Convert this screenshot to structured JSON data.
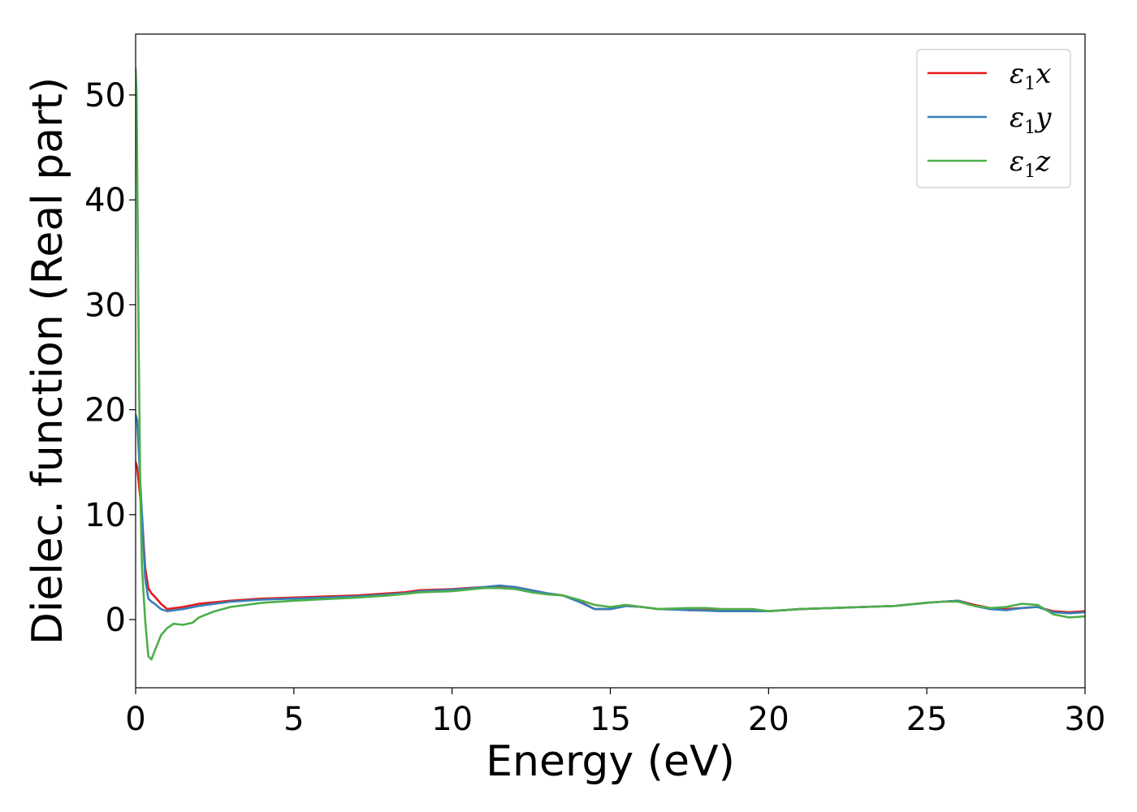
{
  "chart_data": {
    "type": "line",
    "title": "",
    "xlabel": "Energy (eV)",
    "ylabel": "Dielec. function (Real part)",
    "xlim": [
      0,
      30
    ],
    "ylim": [
      -6.5,
      55.8
    ],
    "xticks": [
      0,
      5,
      10,
      15,
      20,
      25,
      30
    ],
    "yticks": [
      0,
      10,
      20,
      30,
      40,
      50
    ],
    "grid": false,
    "legend_position": "top-right",
    "series": [
      {
        "name": "ε1x",
        "legend_symbol": "ε",
        "legend_subscript": "1",
        "legend_suffix": "x",
        "color": "#e41a1c",
        "x": [
          0,
          0.05,
          0.1,
          0.2,
          0.3,
          0.4,
          0.5,
          0.6,
          0.8,
          1.0,
          1.5,
          2,
          3,
          4,
          5,
          6,
          7,
          8,
          8.5,
          9,
          10,
          10.5,
          11,
          11.5,
          12,
          12.5,
          13,
          13.5,
          14,
          14.5,
          15,
          15.5,
          16,
          16.5,
          17,
          17.5,
          18,
          18.5,
          19,
          19.5,
          20,
          20.5,
          21,
          22,
          23,
          24,
          25,
          25.5,
          26,
          26.5,
          27,
          27.5,
          28,
          28.5,
          29,
          29.5,
          30
        ],
        "y": [
          15,
          14.5,
          13,
          10,
          5,
          3,
          2.5,
          2.2,
          1.5,
          1.0,
          1.2,
          1.5,
          1.8,
          2.0,
          2.1,
          2.2,
          2.3,
          2.5,
          2.6,
          2.8,
          2.9,
          3.0,
          3.1,
          3.2,
          3.1,
          2.8,
          2.5,
          2.3,
          1.8,
          1.0,
          1.0,
          1.3,
          1.2,
          1.0,
          1.0,
          0.9,
          0.9,
          0.85,
          0.85,
          0.85,
          0.8,
          0.9,
          1.0,
          1.1,
          1.2,
          1.3,
          1.6,
          1.7,
          1.8,
          1.4,
          1.1,
          1.0,
          1.1,
          1.2,
          0.8,
          0.7,
          0.8
        ]
      },
      {
        "name": "ε1y",
        "legend_symbol": "ε",
        "legend_subscript": "1",
        "legend_suffix": "y",
        "color": "#377eb8",
        "x": [
          0,
          0.05,
          0.1,
          0.2,
          0.3,
          0.4,
          0.5,
          0.6,
          0.8,
          1.0,
          1.5,
          2,
          3,
          4,
          5,
          6,
          7,
          8,
          8.5,
          9,
          10,
          10.5,
          11,
          11.5,
          12,
          12.5,
          13,
          13.5,
          14,
          14.5,
          15,
          15.5,
          16,
          16.5,
          17,
          17.5,
          18,
          18.5,
          19,
          19.5,
          20,
          20.5,
          21,
          22,
          23,
          24,
          25,
          25.5,
          26,
          26.5,
          27,
          27.5,
          28,
          28.5,
          29,
          29.5,
          30
        ],
        "y": [
          19.5,
          19,
          16,
          10,
          4,
          2,
          1.7,
          1.5,
          1.0,
          0.8,
          1.0,
          1.3,
          1.7,
          1.9,
          2.0,
          2.1,
          2.2,
          2.4,
          2.5,
          2.7,
          2.85,
          2.95,
          3.1,
          3.25,
          3.1,
          2.8,
          2.5,
          2.3,
          1.7,
          1.0,
          1.0,
          1.3,
          1.2,
          1.0,
          0.95,
          0.9,
          0.85,
          0.8,
          0.8,
          0.8,
          0.8,
          0.9,
          1.0,
          1.1,
          1.2,
          1.3,
          1.6,
          1.7,
          1.8,
          1.3,
          1.0,
          0.9,
          1.1,
          1.2,
          0.7,
          0.6,
          0.7
        ]
      },
      {
        "name": "ε1z",
        "legend_symbol": "ε",
        "legend_subscript": "1",
        "legend_suffix": "z",
        "color": "#4daf4a",
        "x": [
          0,
          0.03,
          0.06,
          0.1,
          0.15,
          0.2,
          0.3,
          0.4,
          0.5,
          0.6,
          0.8,
          1.0,
          1.2,
          1.5,
          1.8,
          2.0,
          2.5,
          3,
          4,
          5,
          6,
          7,
          8,
          9,
          10,
          11,
          11.5,
          12,
          12.5,
          13,
          13.5,
          14,
          14.5,
          15,
          15.5,
          16,
          16.5,
          17,
          17.5,
          18,
          18.5,
          19,
          19.5,
          20,
          20.5,
          21,
          22,
          23,
          24,
          25,
          25.5,
          26,
          26.5,
          27,
          27.5,
          28,
          28.5,
          29,
          29.5,
          30
        ],
        "y": [
          52.5,
          50,
          40,
          25,
          12,
          5,
          0,
          -3.5,
          -3.8,
          -3.0,
          -1.5,
          -0.8,
          -0.4,
          -0.5,
          -0.3,
          0.2,
          0.8,
          1.2,
          1.6,
          1.8,
          1.95,
          2.1,
          2.3,
          2.6,
          2.7,
          3.0,
          3.0,
          2.9,
          2.6,
          2.4,
          2.3,
          1.9,
          1.4,
          1.2,
          1.4,
          1.2,
          1.0,
          1.05,
          1.1,
          1.1,
          1.0,
          1.0,
          1.0,
          0.8,
          0.9,
          1.0,
          1.1,
          1.2,
          1.3,
          1.6,
          1.7,
          1.7,
          1.3,
          1.1,
          1.2,
          1.5,
          1.4,
          0.5,
          0.2,
          0.3
        ]
      }
    ]
  }
}
